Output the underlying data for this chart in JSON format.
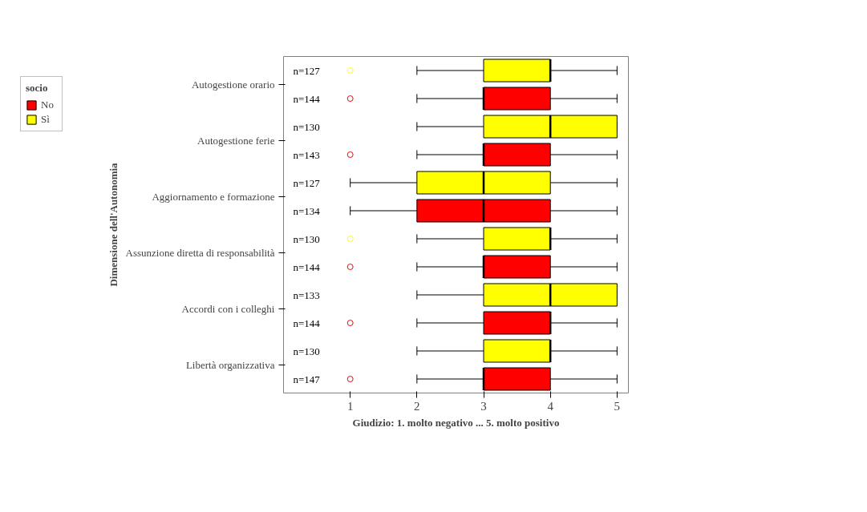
{
  "chart_data": {
    "type": "box",
    "orientation": "horizontal",
    "xlabel": "Giudizio: 1. molto negativo ... 5. molto positivo",
    "ylabel": "Dimensione dell'Autonomia",
    "legend_title": "socio",
    "legend": "top left",
    "grid": false,
    "marker": "circle",
    "categories": [
      "Autogestione orario",
      "Autogestione ferie",
      "Aggiornamento e formazione",
      "Assunzione diretta di responsabilità",
      "Accordi con i colleghi",
      "Libertà organizzativa"
    ],
    "xlim": [
      0,
      5.17
    ],
    "xticks": [
      1,
      2,
      3,
      4,
      5
    ],
    "series": [
      {
        "name": "Sì",
        "color": "#ffff00",
        "boxes": [
          {
            "low": 2,
            "q1": 3,
            "median": 4,
            "q3": 4,
            "high": 5,
            "outliers": [
              1
            ]
          },
          {
            "low": 2,
            "q1": 3,
            "median": 4,
            "q3": 5,
            "high": 5
          },
          {
            "low": 1,
            "q1": 2,
            "median": 3,
            "q3": 4,
            "high": 5
          },
          {
            "low": 2,
            "q1": 3,
            "median": 4,
            "q3": 4,
            "high": 5,
            "outliers": [
              1
            ]
          },
          {
            "low": 2,
            "q1": 3,
            "median": 4,
            "q3": 5,
            "high": 5
          },
          {
            "low": 2,
            "q1": 3,
            "median": 4,
            "q3": 4,
            "high": 5
          }
        ]
      },
      {
        "name": "No",
        "color": "#ff0000",
        "boxes": [
          {
            "low": 2,
            "q1": 3,
            "median": 3,
            "q3": 4,
            "high": 5,
            "outliers": [
              1
            ]
          },
          {
            "low": 2,
            "q1": 3,
            "median": 3,
            "q3": 4,
            "high": 5,
            "outliers": [
              1
            ]
          },
          {
            "low": 1,
            "q1": 2,
            "median": 3,
            "q3": 4,
            "high": 5
          },
          {
            "low": 2,
            "q1": 3,
            "median": 3,
            "q3": 4,
            "high": 5,
            "outliers": [
              1
            ]
          },
          {
            "low": 2,
            "q1": 3,
            "median": 4,
            "q3": 4,
            "high": 5,
            "outliers": [
              1
            ]
          },
          {
            "low": 2,
            "q1": 3,
            "median": 3,
            "q3": 4,
            "high": 5,
            "outliers": [
              1
            ]
          }
        ]
      }
    ],
    "annotations": [
      "n=127",
      "n=144",
      "n=130",
      "n=143",
      "n=127",
      "n=134",
      "n=130",
      "n=144",
      "n=133",
      "n=144",
      "n=130",
      "n=147"
    ]
  }
}
